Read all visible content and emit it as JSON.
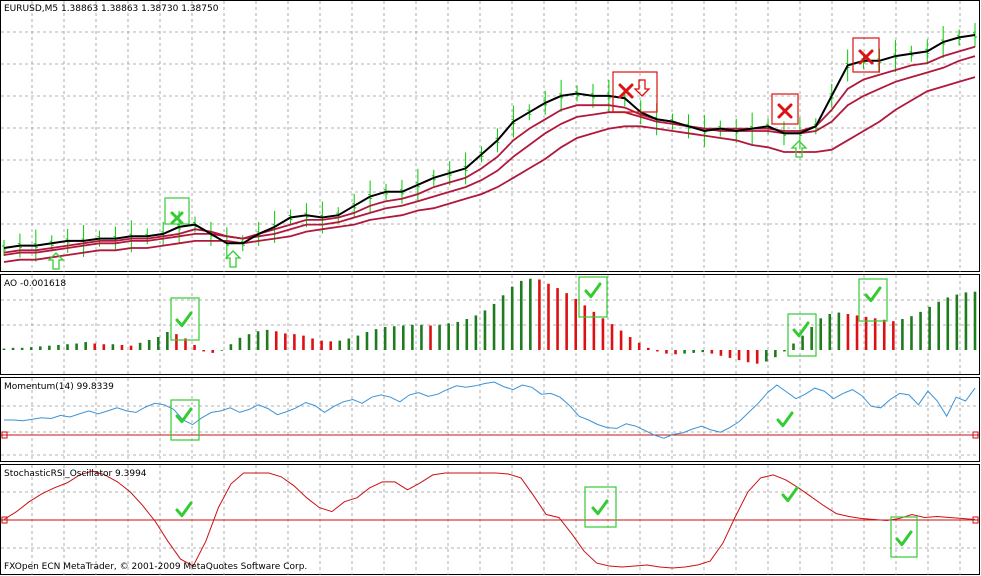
{
  "main": {
    "header": "EURUSD,M5  1.38863 1.38863 1.38730 1.38750",
    "footer": "FXOpen ECN MetaTrader, © 2001-2009 MetaQuotes Software Corp."
  },
  "ao": {
    "header": "AO -0.001618"
  },
  "momentum": {
    "header": "Momentum(14) 99.8339"
  },
  "stoch": {
    "header": "StochasticRSI_Oscillator 9.3994"
  },
  "colors": {
    "background": "#ffffff",
    "grid": "#9a9a9a",
    "bull_bar": "#00cc00",
    "black_line": "#000000",
    "ma_line": "#b0183c",
    "ao_up": "#1e7b1e",
    "ao_down": "#dd1111",
    "momentum": "#3a93d8",
    "stoch": "#cc1111",
    "level_line": "#cc1111",
    "signal_green": "#33cc33",
    "signal_red": "#dd1111"
  },
  "icons": [
    "up-arrow-icon",
    "down-arrow-icon",
    "cross-icon",
    "check-icon"
  ],
  "chart_data": [
    {
      "type": "line",
      "panel": "price",
      "series": [
        {
          "values": [
            0.06,
            0.07,
            0.07,
            0.08,
            0.09,
            0.09,
            0.1,
            0.1,
            0.11,
            0.11,
            0.12,
            0.15,
            0.16,
            0.12,
            0.08,
            0.08,
            0.12,
            0.15,
            0.19,
            0.2,
            0.19,
            0.2,
            0.24,
            0.28,
            0.3,
            0.3,
            0.33,
            0.36,
            0.38,
            0.4,
            0.46,
            0.52,
            0.6,
            0.64,
            0.68,
            0.71,
            0.72,
            0.71,
            0.71,
            0.7,
            0.64,
            0.61,
            0.6,
            0.58,
            0.56,
            0.57,
            0.56,
            0.57,
            0.58,
            0.55,
            0.55,
            0.58,
            0.71,
            0.84,
            0.86,
            0.86,
            0.88,
            0.89,
            0.9,
            0.94,
            0.96,
            0.97
          ]
        },
        {
          "values": [
            0.04,
            0.05,
            0.05,
            0.06,
            0.07,
            0.08,
            0.09,
            0.09,
            0.1,
            0.1,
            0.11,
            0.12,
            0.14,
            0.13,
            0.11,
            0.1,
            0.12,
            0.14,
            0.16,
            0.18,
            0.18,
            0.19,
            0.21,
            0.24,
            0.26,
            0.27,
            0.29,
            0.32,
            0.34,
            0.36,
            0.4,
            0.45,
            0.52,
            0.57,
            0.61,
            0.65,
            0.67,
            0.67,
            0.67,
            0.66,
            0.63,
            0.61,
            0.6,
            0.58,
            0.57,
            0.57,
            0.57,
            0.57,
            0.57,
            0.56,
            0.56,
            0.58,
            0.65,
            0.74,
            0.78,
            0.8,
            0.82,
            0.84,
            0.85,
            0.88,
            0.9,
            0.92
          ]
        },
        {
          "values": [
            0.03,
            0.04,
            0.04,
            0.05,
            0.06,
            0.07,
            0.08,
            0.08,
            0.09,
            0.09,
            0.1,
            0.11,
            0.12,
            0.12,
            0.11,
            0.1,
            0.11,
            0.12,
            0.14,
            0.16,
            0.16,
            0.17,
            0.19,
            0.21,
            0.23,
            0.24,
            0.26,
            0.28,
            0.3,
            0.32,
            0.35,
            0.39,
            0.45,
            0.5,
            0.55,
            0.59,
            0.62,
            0.63,
            0.64,
            0.64,
            0.62,
            0.6,
            0.59,
            0.58,
            0.57,
            0.56,
            0.56,
            0.56,
            0.56,
            0.55,
            0.55,
            0.56,
            0.6,
            0.67,
            0.71,
            0.74,
            0.77,
            0.79,
            0.81,
            0.83,
            0.86,
            0.88
          ]
        },
        {
          "values": [
            0.0,
            0.01,
            0.01,
            0.02,
            0.03,
            0.04,
            0.05,
            0.05,
            0.06,
            0.06,
            0.07,
            0.08,
            0.09,
            0.09,
            0.09,
            0.08,
            0.09,
            0.1,
            0.11,
            0.13,
            0.14,
            0.15,
            0.16,
            0.18,
            0.19,
            0.2,
            0.22,
            0.23,
            0.25,
            0.27,
            0.29,
            0.32,
            0.36,
            0.4,
            0.44,
            0.49,
            0.53,
            0.55,
            0.57,
            0.58,
            0.58,
            0.57,
            0.56,
            0.55,
            0.54,
            0.53,
            0.52,
            0.5,
            0.49,
            0.47,
            0.47,
            0.47,
            0.48,
            0.52,
            0.56,
            0.6,
            0.65,
            0.69,
            0.73,
            0.75,
            0.77,
            0.79
          ]
        }
      ]
    },
    {
      "type": "bar",
      "panel": "ao",
      "values": [
        0.02,
        0.03,
        0.03,
        0.04,
        0.05,
        0.06,
        0.07,
        0.08,
        0.09,
        0.11,
        0.09,
        0.08,
        0.08,
        0.07,
        0.06,
        0.1,
        0.14,
        0.18,
        0.25,
        0.22,
        0.16,
        0.07,
        -0.02,
        -0.04,
        -0.01,
        0.08,
        0.17,
        0.22,
        0.26,
        0.28,
        0.26,
        0.23,
        0.22,
        0.2,
        0.16,
        0.13,
        0.12,
        0.13,
        0.16,
        0.2,
        0.25,
        0.29,
        0.32,
        0.33,
        0.34,
        0.35,
        0.35,
        0.34,
        0.35,
        0.37,
        0.39,
        0.43,
        0.48,
        0.55,
        0.64,
        0.76,
        0.88,
        0.96,
        0.99,
        0.98,
        0.92,
        0.86,
        0.79,
        0.71,
        0.62,
        0.53,
        0.44,
        0.36,
        0.27,
        0.18,
        0.1,
        0.03,
        -0.02,
        -0.05,
        -0.06,
        -0.05,
        -0.04,
        -0.03,
        -0.05,
        -0.08,
        -0.11,
        -0.14,
        -0.17,
        -0.19,
        -0.16,
        -0.1,
        -0.02,
        0.09,
        0.2,
        0.32,
        0.44,
        0.5,
        0.52,
        0.5,
        0.48,
        0.46,
        0.44,
        0.42,
        0.4,
        0.43,
        0.47,
        0.53,
        0.6,
        0.67,
        0.73,
        0.77,
        0.8,
        0.81
      ]
    },
    {
      "type": "line",
      "panel": "momentum",
      "values": [
        0.5,
        0.5,
        0.49,
        0.51,
        0.53,
        0.52,
        0.56,
        0.54,
        0.58,
        0.62,
        0.58,
        0.62,
        0.66,
        0.62,
        0.6,
        0.67,
        0.72,
        0.7,
        0.64,
        0.5,
        0.44,
        0.53,
        0.6,
        0.62,
        0.66,
        0.6,
        0.64,
        0.7,
        0.65,
        0.57,
        0.61,
        0.66,
        0.73,
        0.69,
        0.6,
        0.68,
        0.74,
        0.77,
        0.72,
        0.8,
        0.83,
        0.8,
        0.74,
        0.83,
        0.86,
        0.81,
        0.84,
        0.9,
        0.95,
        0.93,
        0.95,
        0.98,
        1.0,
        0.94,
        0.9,
        0.96,
        0.93,
        0.84,
        0.85,
        0.8,
        0.69,
        0.55,
        0.5,
        0.44,
        0.4,
        0.39,
        0.45,
        0.42,
        0.36,
        0.3,
        0.26,
        0.31,
        0.33,
        0.38,
        0.42,
        0.37,
        0.34,
        0.4,
        0.48,
        0.6,
        0.72,
        0.86,
        0.96,
        0.87,
        0.78,
        0.84,
        0.92,
        0.88,
        0.78,
        0.85,
        0.9,
        0.82,
        0.68,
        0.66,
        0.77,
        0.85,
        0.83,
        0.7,
        0.88,
        0.75,
        0.55,
        0.8,
        0.75,
        0.92
      ]
    },
    {
      "type": "line",
      "panel": "stoch",
      "values": [
        0.5,
        0.58,
        0.68,
        0.76,
        0.82,
        0.87,
        0.95,
        0.99,
        0.95,
        0.88,
        0.78,
        0.64,
        0.48,
        0.28,
        0.1,
        0.03,
        0.28,
        0.62,
        0.86,
        0.97,
        0.97,
        0.97,
        0.93,
        0.84,
        0.72,
        0.62,
        0.58,
        0.68,
        0.72,
        0.82,
        0.88,
        0.88,
        0.8,
        0.87,
        0.95,
        0.97,
        0.97,
        0.97,
        0.97,
        0.97,
        0.96,
        0.92,
        0.74,
        0.55,
        0.52,
        0.36,
        0.18,
        0.06,
        0.03,
        0.02,
        0.03,
        0.04,
        0.02,
        0.01,
        0.02,
        0.04,
        0.08,
        0.26,
        0.53,
        0.78,
        0.92,
        0.95,
        0.9,
        0.82,
        0.73,
        0.64,
        0.56,
        0.53,
        0.51,
        0.5,
        0.49,
        0.51,
        0.55,
        0.52,
        0.53,
        0.52,
        0.51,
        0.5
      ]
    }
  ]
}
